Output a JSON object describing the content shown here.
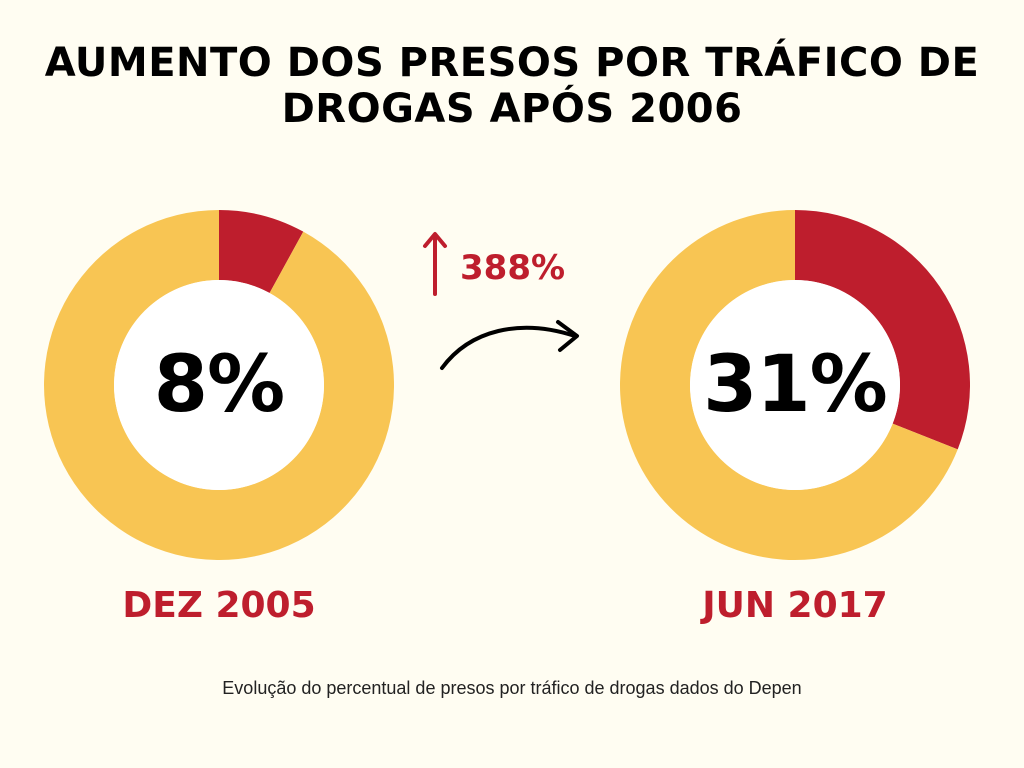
{
  "title": {
    "line1": "AUMENTO DOS PRESOS POR TRÁFICO DE",
    "line2": "DROGAS APÓS 2006"
  },
  "growth_label": "388%",
  "caption": "Evolução do percentual de presos por tráfico de drogas dados do Depen",
  "colors": {
    "highlight": "#be1e2d",
    "remainder": "#f8c553",
    "background": "#fffdf2"
  },
  "chart_data": [
    {
      "type": "pie",
      "variant": "donut",
      "label": "DEZ 2005",
      "center_text": "8%",
      "slices": [
        {
          "value": 8
        },
        {
          "value": 92
        }
      ]
    },
    {
      "type": "pie",
      "variant": "donut",
      "label": "JUN 2017",
      "center_text": "31%",
      "slices": [
        {
          "value": 31
        },
        {
          "value": 69
        }
      ]
    }
  ]
}
